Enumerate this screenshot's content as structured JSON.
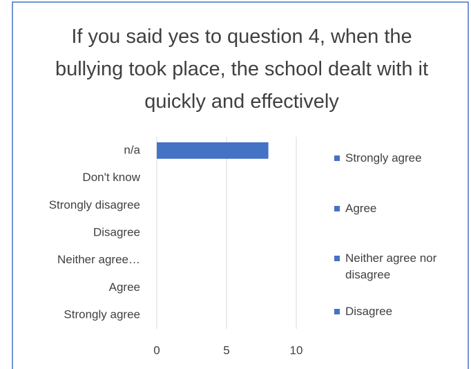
{
  "chart_data": {
    "type": "bar",
    "orientation": "horizontal",
    "title": "If you said yes to question 4, when the bullying took place, the school dealt with it quickly and effectively",
    "categories": [
      "n/a",
      "Don't know",
      "Strongly disagree",
      "Disagree",
      "Neither agree…",
      "Agree",
      "Strongly agree"
    ],
    "values": [
      8,
      0,
      0,
      0,
      0,
      0,
      0
    ],
    "color": "#4472c4",
    "xlim": [
      0,
      10
    ],
    "xticks": [
      0,
      5,
      10
    ],
    "grid": true,
    "legend": [
      "Strongly agree",
      "Agree",
      "Neither agree nor disagree",
      "Disagree"
    ],
    "legend_position": "right"
  }
}
